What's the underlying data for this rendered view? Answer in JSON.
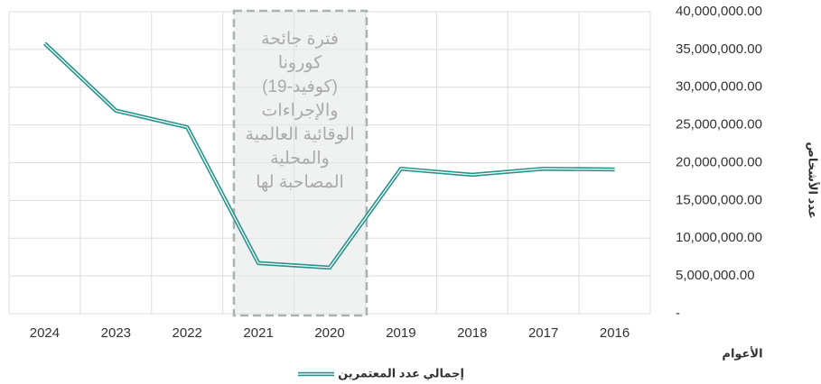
{
  "chart_data": {
    "type": "line",
    "categories": [
      "2024",
      "2023",
      "2022",
      "2021",
      "2020",
      "2019",
      "2018",
      "2017",
      "2016"
    ],
    "series": [
      {
        "name": "إجمالي عدد المعتمرين",
        "color": "#26948c",
        "values": [
          35800000,
          26900000,
          24700000,
          6700000,
          6100000,
          19200000,
          18400000,
          19200000,
          19100000
        ]
      }
    ],
    "ylim": [
      0,
      40000000
    ],
    "yticks": [
      {
        "value": 0,
        "label": "-"
      },
      {
        "value": 5000000,
        "label": "5,000,000.00"
      },
      {
        "value": 10000000,
        "label": "10,000,000.00"
      },
      {
        "value": 15000000,
        "label": "15,000,000.00"
      },
      {
        "value": 20000000,
        "label": "20,000,000.00"
      },
      {
        "value": 25000000,
        "label": "25,000,000.00"
      },
      {
        "value": 30000000,
        "label": "30,000,000.00"
      },
      {
        "value": 35000000,
        "label": "35,000,000.00"
      },
      {
        "value": 40000000,
        "label": "40,000,000.00"
      }
    ],
    "y_label": "عدد الأشخاص",
    "x_label": "الأعوام",
    "annotation": [
      "فترة جائحة",
      "كورونا",
      "(كوفيد-19)",
      "والإجراءات",
      "الوقائية العالمية",
      "والمحلية",
      "المصاحبة لها"
    ],
    "grid": true
  }
}
